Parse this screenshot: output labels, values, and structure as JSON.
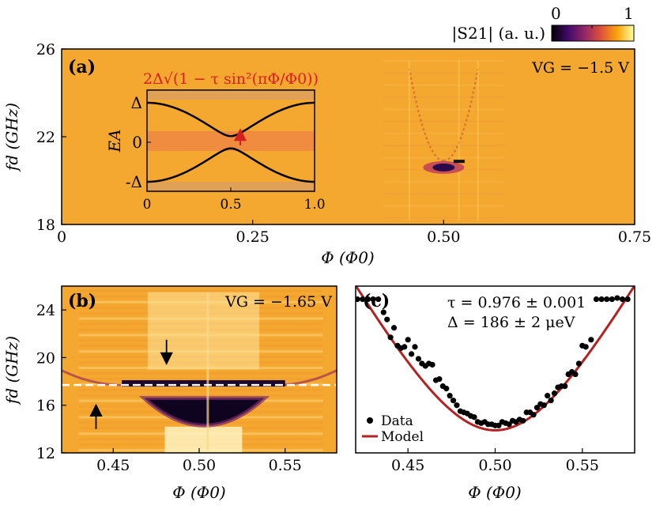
{
  "colorbar": {
    "label": "|S21| (a. u.)",
    "ticks": [
      "0",
      "1"
    ],
    "colormap": [
      "#000004",
      "#420a68",
      "#932667",
      "#dd513a",
      "#fca50a",
      "#fcffa4"
    ]
  },
  "chart_data": [
    {
      "id": "a",
      "type": "heatmap",
      "panel_label": "(a)",
      "annotation": "VG = −1.5 V",
      "xlabel": "Φ (Φ0)",
      "ylabel": "fd (GHz)",
      "xlim": [
        0,
        0.75
      ],
      "ylim": [
        18,
        26
      ],
      "xticks": [
        "0",
        "0.25",
        "0.50",
        "0.75"
      ],
      "yticks": [
        "18",
        "22",
        "26"
      ],
      "background_color": "#f5a830",
      "features": [
        {
          "name": "resonance-dip",
          "x": 0.5,
          "y": 20.6,
          "depth": 0.9
        },
        {
          "name": "spectral-line-left",
          "x_range": [
            0.46,
            0.5
          ],
          "y_range": [
            20.9,
            25
          ]
        },
        {
          "name": "spectral-line-right",
          "x_range": [
            0.5,
            0.54
          ],
          "y_range": [
            20.9,
            25
          ]
        }
      ]
    },
    {
      "id": "a-inset",
      "type": "line",
      "formula": "2Δ√(1 − τ sin²(πΦ/Φ0))",
      "ylabel": "EA",
      "xlim": [
        0,
        1
      ],
      "xticks": [
        "0",
        "0.5",
        "1.0"
      ],
      "yticks": [
        "-Δ",
        "0",
        "Δ"
      ],
      "tau": 0.976,
      "series": [
        {
          "name": "upper-branch",
          "sign": 1
        },
        {
          "name": "lower-branch",
          "sign": -1
        }
      ],
      "arrow_x": 0.5
    },
    {
      "id": "b",
      "type": "heatmap",
      "panel_label": "(b)",
      "annotation": "VG = −1.65 V",
      "xlabel": "Φ (Φ0)",
      "ylabel": "fd (GHz)",
      "xlim": [
        0.42,
        0.58
      ],
      "ylim": [
        12,
        26
      ],
      "xticks": [
        "0.45",
        "0.50",
        "0.55"
      ],
      "yticks": [
        "12",
        "16",
        "20",
        "24"
      ],
      "background_color": "#f5a830",
      "dashed_line_y": 17.7,
      "arrows": [
        {
          "x": 0.481,
          "y": 21.5,
          "direction": "down"
        },
        {
          "x": 0.44,
          "y": 14.0,
          "direction": "up"
        }
      ]
    },
    {
      "id": "c",
      "type": "scatter",
      "panel_label": "(c)",
      "fit_text_1": "τ = 0.976 ± 0.001",
      "fit_text_2": "Δ = 186 ± 2 μeV",
      "xlabel": "Φ (Φ0)",
      "xlim": [
        0.42,
        0.58
      ],
      "ylim": [
        12,
        26
      ],
      "xticks": [
        "0.45",
        "0.50",
        "0.55"
      ],
      "legend": [
        "Data",
        "Model"
      ],
      "legend_position": "bottom-left",
      "model_color": "#b22222",
      "model": {
        "tau": 0.976,
        "scale_ghz": 89.7
      },
      "series": [
        {
          "name": "Data",
          "x": [
            0.421,
            0.424,
            0.427,
            0.43,
            0.433,
            0.436,
            0.438,
            0.44,
            0.442,
            0.444,
            0.446,
            0.448,
            0.45,
            0.452,
            0.454,
            0.456,
            0.458,
            0.46,
            0.462,
            0.464,
            0.466,
            0.468,
            0.47,
            0.472,
            0.474,
            0.476,
            0.478,
            0.48,
            0.482,
            0.484,
            0.486,
            0.488,
            0.49,
            0.492,
            0.494,
            0.496,
            0.498,
            0.5,
            0.502,
            0.504,
            0.506,
            0.508,
            0.51,
            0.512,
            0.514,
            0.516,
            0.518,
            0.52,
            0.522,
            0.524,
            0.526,
            0.528,
            0.53,
            0.532,
            0.534,
            0.536,
            0.538,
            0.54,
            0.542,
            0.544,
            0.546,
            0.548,
            0.55,
            0.552,
            0.555,
            0.558,
            0.561,
            0.564,
            0.567,
            0.57,
            0.573,
            0.576
          ],
          "y": [
            24.9,
            24.9,
            24.9,
            24.9,
            24.9,
            23.8,
            23.2,
            21.7,
            22.5,
            21.0,
            20.8,
            20.9,
            21.5,
            20.3,
            20.9,
            19.9,
            19.5,
            19.3,
            19.5,
            19.4,
            18.1,
            18.2,
            17.6,
            17.4,
            16.8,
            16.4,
            16.0,
            15.5,
            15.4,
            15.3,
            15.1,
            15.0,
            14.6,
            14.5,
            14.6,
            14.4,
            14.4,
            14.3,
            14.3,
            14.6,
            14.5,
            14.4,
            14.7,
            14.6,
            14.8,
            14.7,
            15.4,
            15.4,
            15.2,
            15.8,
            16.1,
            16.0,
            16.8,
            16.4,
            17.0,
            17.5,
            17.6,
            17.6,
            18.6,
            18.8,
            18.6,
            19.5,
            21.0,
            20.9,
            21.5,
            24.9,
            24.9,
            24.9,
            24.9,
            25.0,
            24.9,
            24.9
          ]
        }
      ]
    }
  ]
}
